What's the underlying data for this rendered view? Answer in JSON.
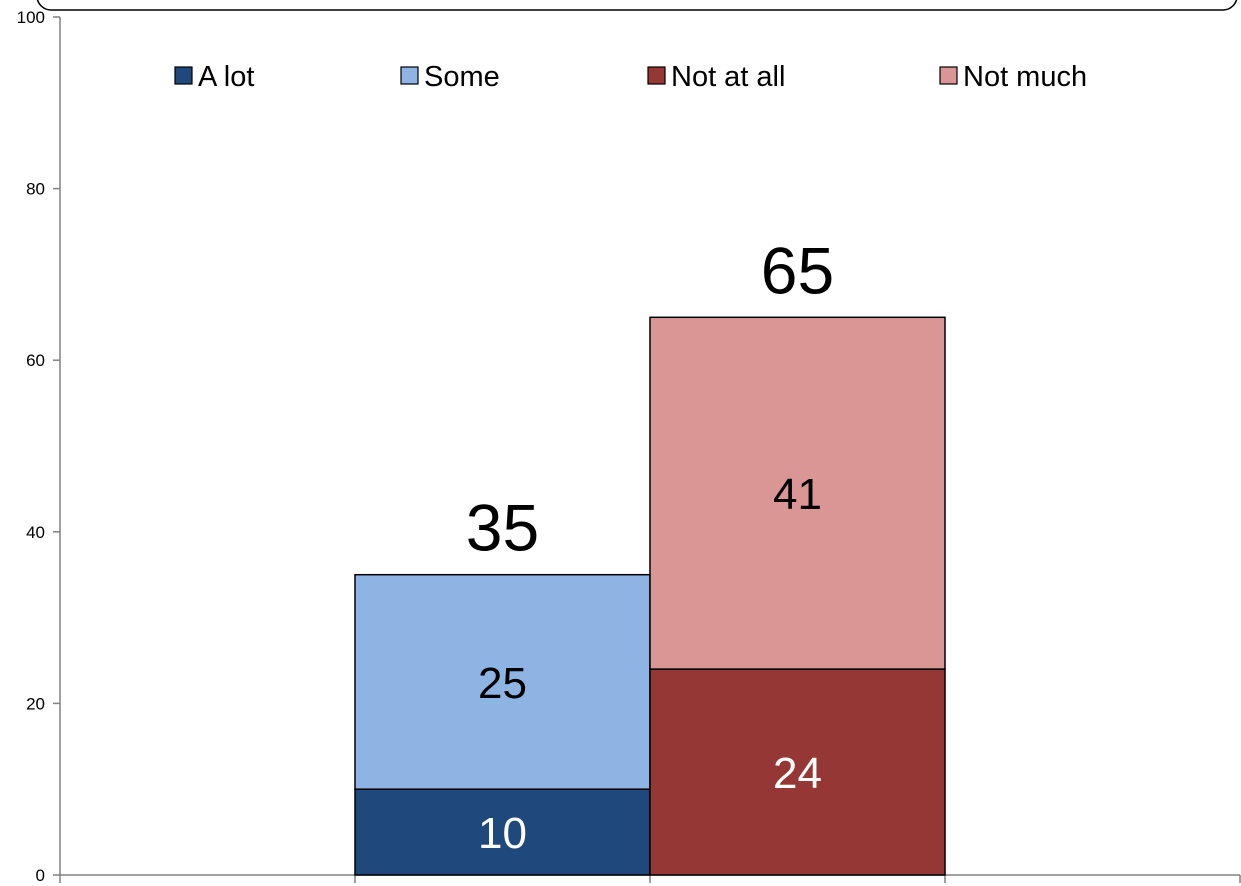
{
  "chart_data": {
    "type": "bar",
    "stacked": true,
    "categories": [
      "",
      "",
      "",
      ""
    ],
    "yticks": [
      "0",
      "20",
      "40",
      "60",
      "80",
      "100"
    ],
    "ylim": [
      0,
      100
    ],
    "legend_position": "top",
    "grid": false,
    "series": [
      {
        "name": "A lot",
        "color": "#1f497d",
        "values": [
          null,
          10,
          null,
          null
        ],
        "label_color": "#ffffff"
      },
      {
        "name": "Some",
        "color": "#8eb4e3",
        "values": [
          null,
          25,
          null,
          null
        ],
        "label_color": "#000000"
      },
      {
        "name": "Not at all",
        "color": "#953735",
        "values": [
          null,
          null,
          24,
          null
        ],
        "label_color": "#ffffff"
      },
      {
        "name": "Not much",
        "color": "#d99694",
        "values": [
          null,
          null,
          41,
          null
        ],
        "label_color": "#000000"
      }
    ],
    "segment_labels": [
      {
        "series": 0,
        "category": 1,
        "text": "10"
      },
      {
        "series": 1,
        "category": 1,
        "text": "25"
      },
      {
        "series": 2,
        "category": 2,
        "text": "24"
      },
      {
        "series": 3,
        "category": 2,
        "text": "41"
      }
    ],
    "totals": [
      {
        "category": 1,
        "value": 35,
        "text": "35"
      },
      {
        "category": 2,
        "value": 65,
        "text": "65"
      }
    ]
  }
}
